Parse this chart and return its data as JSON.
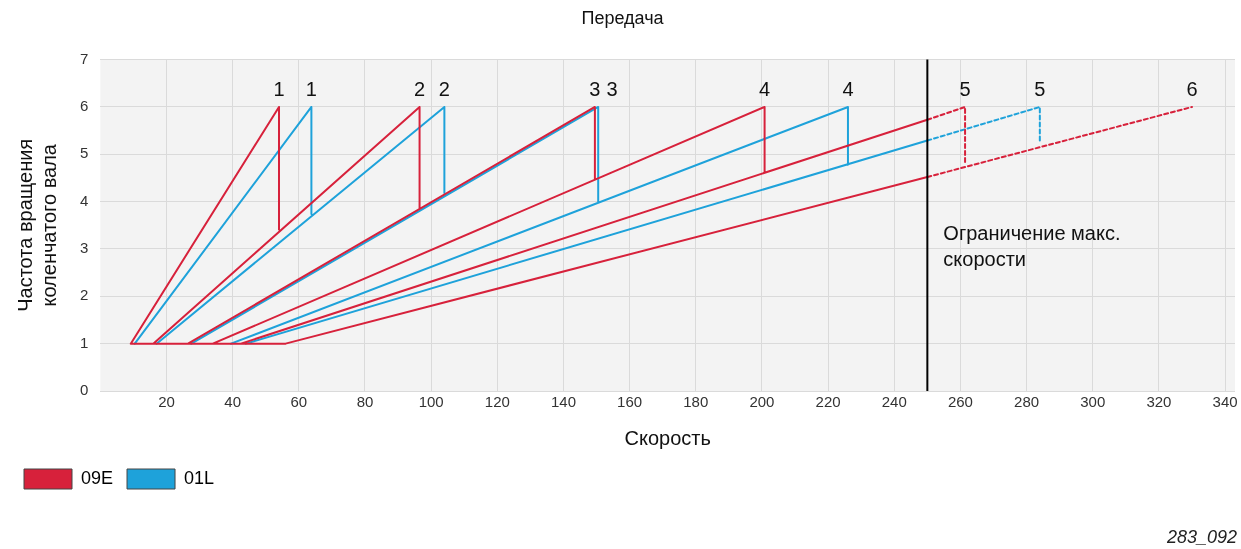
{
  "chart_data": {
    "type": "line",
    "title": "Передача",
    "xlabel": "Скорость",
    "ylabel": "Частота вращения коленчатого вала",
    "xlim": [
      0,
      343
    ],
    "xticks": [
      20,
      40,
      60,
      80,
      100,
      120,
      140,
      160,
      180,
      200,
      220,
      240,
      260,
      280,
      300,
      320,
      340
    ],
    "ylim": [
      0,
      7
    ],
    "yticks": [
      0,
      1,
      2,
      3,
      4,
      5,
      6,
      7
    ],
    "grid": true,
    "legend": "bottom left",
    "marker": "none",
    "series": [
      {
        "name": "09E",
        "color": "#d7213b",
        "line_style": "solid",
        "x": [
          9.2,
          54,
          54,
          null,
          16,
          96.5,
          96.5,
          null,
          26.5,
          149.5,
          149.5,
          null,
          34,
          200.8,
          200.8,
          null,
          42.5,
          250,
          null,
          56,
          250,
          null,
          9.2,
          56
        ],
        "values": [
          1,
          6,
          3.41,
          null,
          1,
          6,
          3.85,
          null,
          1,
          6,
          4.47,
          null,
          1,
          6,
          4.63,
          null,
          1,
          5.73,
          null,
          1,
          4.52,
          null,
          1,
          1
        ]
      },
      {
        "name": "01L",
        "color": "#1ea2da",
        "line_style": "solid",
        "x": [
          10.4,
          63.8,
          63.8,
          null,
          17,
          104,
          104,
          null,
          27.5,
          150.5,
          150.5,
          null,
          39.5,
          226,
          226,
          null,
          44,
          250
        ],
        "values": [
          1,
          6,
          3.74,
          null,
          1,
          6,
          4.18,
          null,
          1,
          6,
          3.99,
          null,
          1,
          6,
          4.78,
          null,
          1,
          5.29
        ]
      },
      {
        "color": "#d7213b",
        "line_style": "dashed",
        "x": [
          250,
          261.4,
          261.4,
          null,
          250,
          330
        ],
        "values": [
          5.73,
          6,
          4.78,
          null,
          4.52,
          6
        ]
      },
      {
        "color": "#1ea2da",
        "line_style": "dashed",
        "x": [
          250,
          284,
          284
        ],
        "values": [
          5.29,
          6,
          5.23
        ]
      }
    ],
    "ref_lines": [
      {
        "axis": "x",
        "value": 250,
        "label": "Ограничение макс. скорости",
        "color": "#000000"
      }
    ],
    "annotations": [
      {
        "text": "1",
        "x": 54,
        "y": 6
      },
      {
        "text": "1",
        "x": 63.8,
        "y": 6
      },
      {
        "text": "2",
        "x": 96.5,
        "y": 6
      },
      {
        "text": "2",
        "x": 104,
        "y": 6
      },
      {
        "text": "3",
        "x": 149.5,
        "y": 6
      },
      {
        "text": "3",
        "x": 150.5,
        "y": 6
      },
      {
        "text": "4",
        "x": 200.8,
        "y": 6
      },
      {
        "text": "4",
        "x": 226,
        "y": 6
      },
      {
        "text": "5",
        "x": 261.4,
        "y": 6
      },
      {
        "text": "5",
        "x": 284,
        "y": 6
      },
      {
        "text": "6",
        "x": 330,
        "y": 6
      },
      "283_092"
    ]
  }
}
